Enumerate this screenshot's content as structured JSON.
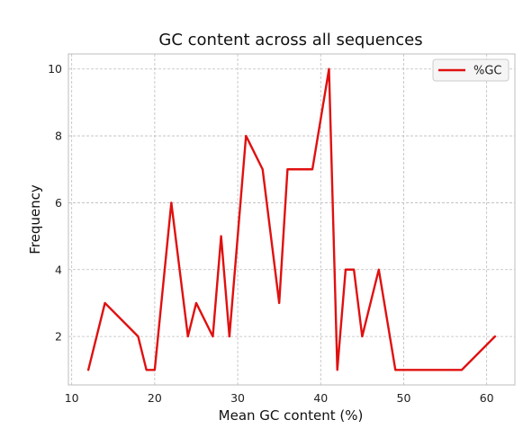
{
  "chart_data": {
    "type": "line",
    "title": "GC content across all sequences",
    "xlabel": "Mean GC content (%)",
    "ylabel": "Frequency",
    "xlim": [
      9.6,
      63.4
    ],
    "ylim": [
      0.55,
      10.45
    ],
    "x_ticks": [
      10,
      20,
      30,
      40,
      50,
      60
    ],
    "y_ticks": [
      2,
      4,
      6,
      8,
      10
    ],
    "grid": true,
    "legend_position": "top-right",
    "series": [
      {
        "name": "%GC",
        "color": "#e01010",
        "x": [
          12,
          14,
          18,
          19,
          20,
          22,
          24,
          25,
          27,
          28,
          29,
          31,
          33,
          35,
          36,
          39,
          41,
          42,
          43,
          44,
          45,
          47,
          49,
          57,
          61
        ],
        "y": [
          1,
          3,
          2,
          1,
          1,
          6,
          2,
          3,
          2,
          5,
          2,
          8,
          7,
          3,
          7,
          7,
          10,
          1,
          4,
          4,
          2,
          4,
          1,
          1,
          2
        ]
      }
    ]
  }
}
